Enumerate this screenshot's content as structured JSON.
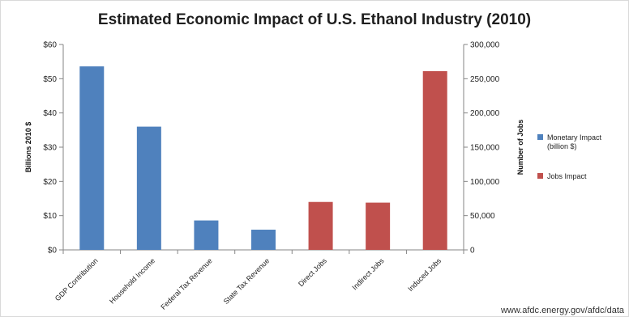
{
  "source_note": "www.afdc.energy.gov/afdc/data",
  "chart_data": {
    "type": "bar",
    "title": "Estimated Economic Impact of U.S. Ethanol Industry (2010)",
    "categories": [
      "GDP Contribution",
      "Household Income",
      "Federal Tax Revenue",
      "State Tax Revenue",
      "Direct Jobs",
      "Indirect Jobs",
      "Induced Jobs"
    ],
    "y_left": {
      "label": "Billions 2010 $",
      "min": 0,
      "max": 60,
      "step": 10,
      "tick_labels": [
        "$0",
        "$10",
        "$20",
        "$30",
        "$40",
        "$50",
        "$60"
      ]
    },
    "y_right": {
      "label": "Number of Jobs",
      "min": 0,
      "max": 300000,
      "step": 50000,
      "tick_labels": [
        "0",
        "50,000",
        "100,000",
        "150,000",
        "200,000",
        "250,000",
        "300,000"
      ]
    },
    "series": [
      {
        "name": "Monetary Impact (billion $)",
        "legend_lines": [
          "Monetary Impact",
          "(billion $)"
        ],
        "axis": "left",
        "color": "#4f81bd",
        "values": [
          53.6,
          36.0,
          8.6,
          5.9,
          null,
          null,
          null
        ]
      },
      {
        "name": "Jobs Impact",
        "legend_lines": [
          "Jobs Impact"
        ],
        "axis": "right",
        "color": "#c0504d",
        "values": [
          null,
          null,
          null,
          null,
          70000,
          69000,
          261000
        ]
      }
    ],
    "grid": false,
    "legend_position": "right"
  }
}
